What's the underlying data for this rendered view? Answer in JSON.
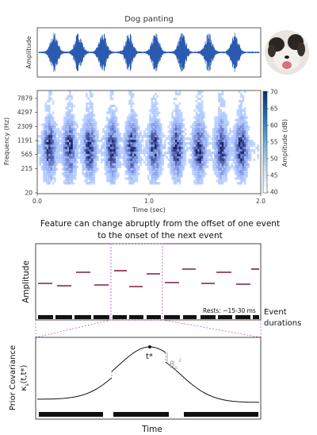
{
  "waveform_panel": {
    "title": "Dog panting",
    "ylabel": "Amplitude"
  },
  "spectrogram_panel": {
    "ylabel": "Frequency (Hz)",
    "xlabel": "Time (sec)",
    "yticks": [
      "7879",
      "4297",
      "2309",
      "1191",
      "565",
      "215",
      "20"
    ],
    "xticks": [
      "0.0",
      "1.0",
      "2.0"
    ],
    "colorbar_label": "Amplitude (dB)",
    "colorbar_ticks": [
      "70",
      "65",
      "60",
      "55",
      "50",
      "45",
      "40"
    ],
    "colormap_colors": [
      "#ffffff",
      "#c6dbef",
      "#6baed6",
      "#2171b5",
      "#08306b"
    ]
  },
  "caption": {
    "line1": "Feature can change abruptly from the offset of one event",
    "line2": "to the onset of the next event"
  },
  "amplitude_panel": {
    "ylabel": "Amplitude",
    "rest_note": "Rests: ~15-30 ms",
    "event_label_1": "Event",
    "event_label_2": "durations",
    "level_color": "#7b1f3e",
    "highlight_color": "#c060c0"
  },
  "covariance_panel": {
    "ylabel_1": "Prior Covariance",
    "ylabel_2": "κ",
    "ylabel_sub": "s",
    "ylabel_3": "(t,t*)",
    "peak_label": "t*",
    "beta_label": "β",
    "beta_sub": "p",
    "beta_sup": "2",
    "xlabel": "Time"
  }
}
